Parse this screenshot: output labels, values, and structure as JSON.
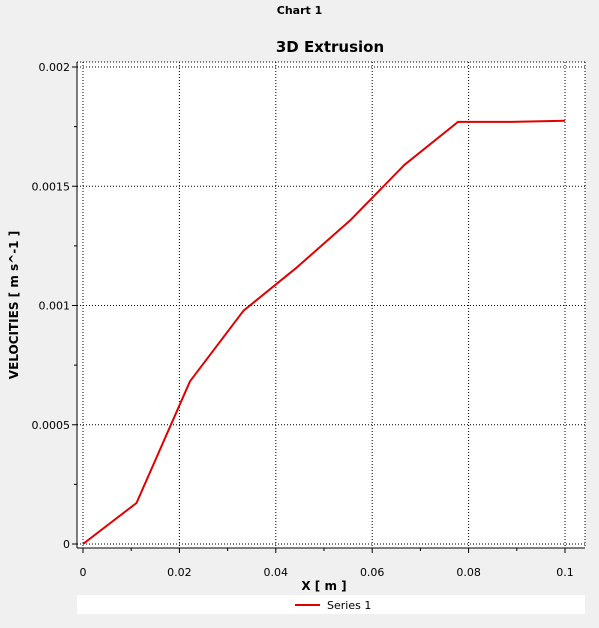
{
  "window": {
    "title": "Chart 1"
  },
  "colors": {
    "background": "#f0f0f0",
    "plot_background": "#ffffff",
    "series_color": "#e00000",
    "grid_color": "#000000"
  },
  "chart_data": {
    "type": "line",
    "title": "3D Extrusion",
    "xlabel": "X [ m ]",
    "ylabel": "VELOCITIES [ m s^-1 ]",
    "xlim": [
      0,
      0.1
    ],
    "ylim": [
      0,
      0.002
    ],
    "x_ticks": [
      0,
      0.02,
      0.04,
      0.06,
      0.08,
      0.1
    ],
    "x_tick_labels": [
      "0",
      "0.02",
      "0.04",
      "0.06",
      "0.08",
      "0.1"
    ],
    "y_ticks": [
      0,
      0.0005,
      0.001,
      0.0015,
      0.002
    ],
    "y_tick_labels": [
      "0",
      "0.0005",
      "0.001",
      "0.0015",
      "0.002"
    ],
    "grid": true,
    "legend_position": "bottom",
    "series": [
      {
        "name": "Series 1",
        "x": [
          0,
          0.0111,
          0.0222,
          0.0333,
          0.0444,
          0.0556,
          0.0667,
          0.0778,
          0.0889,
          0.1
        ],
        "y": [
          0,
          0.000172,
          0.000682,
          0.000978,
          0.00116,
          0.00136,
          0.00159,
          0.00177,
          0.00177,
          0.001775
        ]
      }
    ]
  }
}
